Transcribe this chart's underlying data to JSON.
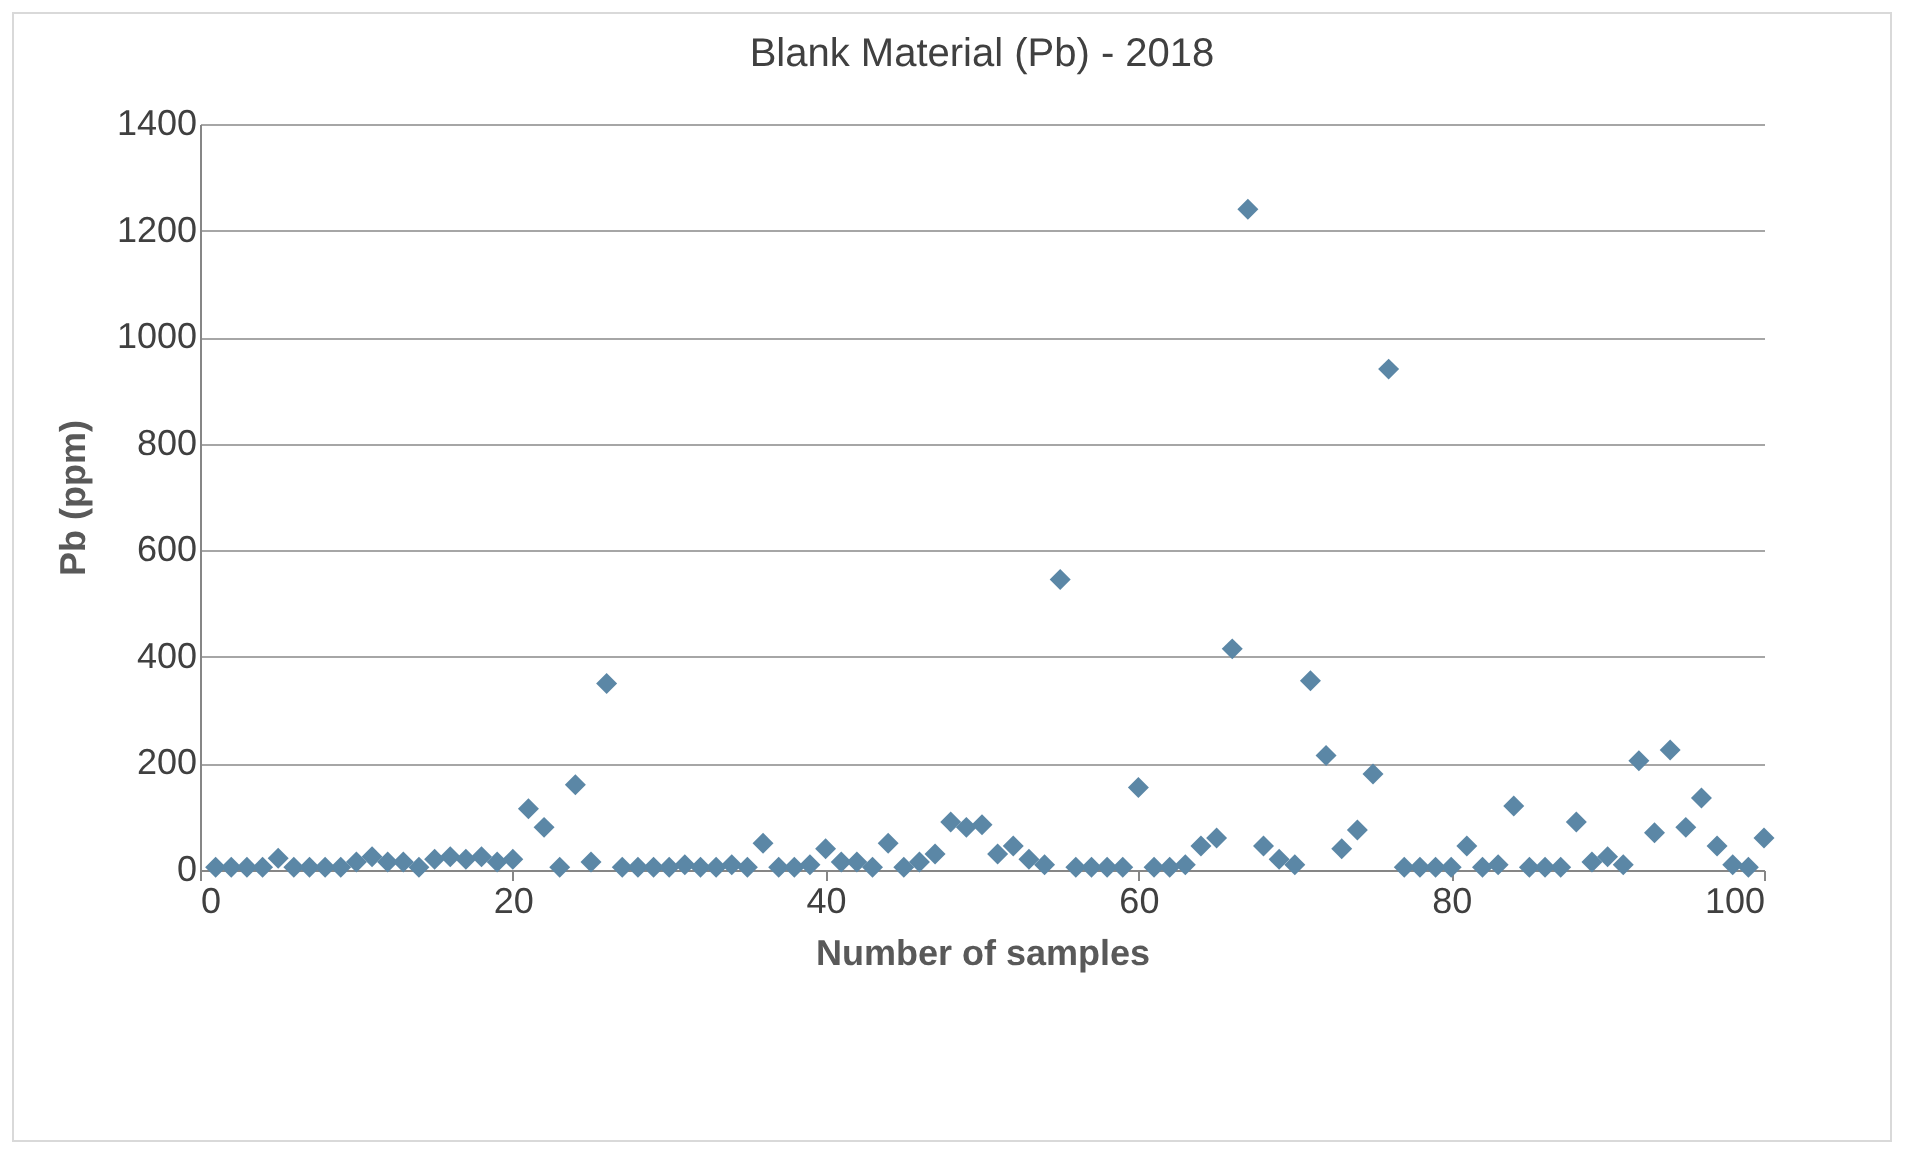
{
  "chart_data": {
    "type": "scatter",
    "title": "Blank Material (Pb) - 2018",
    "xlabel": "Number of samples",
    "ylabel": "Pb (ppm)",
    "x": [
      1,
      2,
      3,
      4,
      5,
      6,
      7,
      8,
      9,
      10,
      11,
      12,
      13,
      14,
      15,
      16,
      17,
      18,
      19,
      20,
      21,
      22,
      23,
      24,
      25,
      26,
      27,
      28,
      29,
      30,
      31,
      32,
      33,
      34,
      35,
      36,
      37,
      38,
      39,
      40,
      41,
      42,
      43,
      44,
      45,
      46,
      47,
      48,
      49,
      50,
      51,
      52,
      53,
      54,
      55,
      56,
      57,
      58,
      59,
      60,
      61,
      62,
      63,
      64,
      65,
      66,
      67,
      68,
      69,
      70,
      71,
      72,
      73,
      74,
      75,
      76,
      77,
      78,
      79,
      80,
      81,
      82,
      83,
      84,
      85,
      86,
      87,
      88,
      89,
      90,
      91,
      92,
      93,
      94,
      95,
      96,
      97,
      98,
      99,
      100
    ],
    "series": [
      {
        "color": "#5b87a6",
        "values": [
          5,
          5,
          5,
          5,
          22,
          5,
          5,
          5,
          5,
          15,
          25,
          15,
          15,
          5,
          20,
          25,
          20,
          25,
          15,
          20,
          115,
          80,
          5,
          160,
          15,
          350,
          5,
          5,
          5,
          5,
          10,
          5,
          5,
          10,
          5,
          50,
          5,
          5,
          10,
          40,
          15,
          15,
          5,
          50,
          5,
          15,
          30,
          90,
          80,
          85,
          30,
          45,
          20,
          10,
          545,
          5,
          5,
          5,
          5,
          155,
          5,
          5,
          10,
          45,
          60,
          415,
          1240,
          45,
          20,
          10,
          355,
          215,
          40,
          75,
          180,
          940,
          5,
          5,
          5,
          5,
          45,
          5,
          10,
          120,
          5,
          5,
          5,
          90,
          15,
          25,
          10,
          205,
          70,
          225,
          80,
          135,
          45,
          10,
          5,
          60
        ]
      }
    ],
    "xlim": [
      0,
      100
    ],
    "xticks": [
      0,
      20,
      40,
      60,
      80,
      100
    ],
    "ylim": [
      0,
      1400
    ],
    "yticks": [
      0,
      200,
      400,
      600,
      800,
      1000,
      1200,
      1400
    ],
    "grid": "y",
    "marker": "diamond",
    "legend": false
  }
}
